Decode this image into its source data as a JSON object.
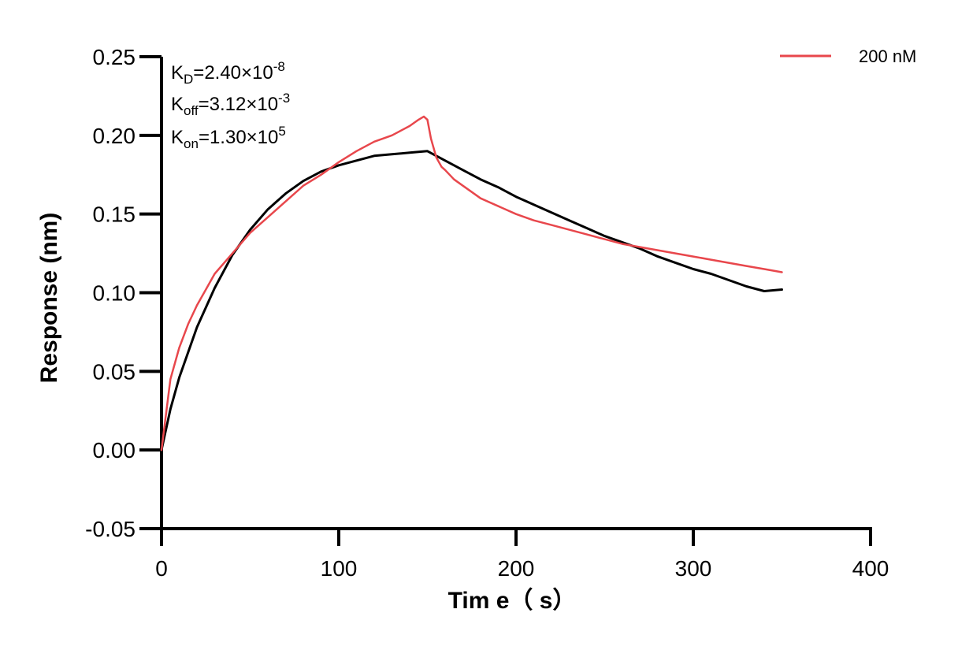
{
  "chart_data": {
    "type": "line",
    "xlabel": "Tim e（ s）",
    "ylabel": "Response (nm)",
    "xlim": [
      0,
      400
    ],
    "ylim": [
      -0.05,
      0.25
    ],
    "xticks": [
      "0",
      "100",
      "200",
      "300",
      "400"
    ],
    "yticks": [
      "-0.05",
      "0.00",
      "0.05",
      "0.10",
      "0.15",
      "0.20",
      "0.25"
    ],
    "grid": false,
    "legend_position": "top-right",
    "annotations": {
      "kd": {
        "base": "K",
        "sub": "D",
        "mid": "=2.40×10",
        "sup": "-8"
      },
      "koff": {
        "base": "K",
        "sub": "off",
        "mid": "=3.12×10",
        "sup": "-3"
      },
      "kon": {
        "base": "K",
        "sub": "on",
        "mid": "=1.30×10",
        "sup": "5"
      }
    },
    "series": [
      {
        "name": "200 nM",
        "color": "#e8474c",
        "x": [
          0,
          5,
          10,
          15,
          20,
          25,
          30,
          40,
          50,
          60,
          70,
          80,
          90,
          100,
          110,
          120,
          125,
          130,
          135,
          140,
          145,
          148,
          150,
          152,
          155,
          158,
          160,
          165,
          170,
          175,
          180,
          190,
          200,
          210,
          220,
          230,
          240,
          250,
          260,
          270,
          280,
          290,
          300,
          310,
          320,
          330,
          340,
          345,
          350
        ],
        "y": [
          0.0,
          0.045,
          0.065,
          0.08,
          0.092,
          0.102,
          0.112,
          0.125,
          0.138,
          0.148,
          0.158,
          0.168,
          0.175,
          0.183,
          0.19,
          0.196,
          0.198,
          0.2,
          0.203,
          0.206,
          0.21,
          0.212,
          0.21,
          0.198,
          0.186,
          0.18,
          0.178,
          0.172,
          0.168,
          0.164,
          0.16,
          0.155,
          0.15,
          0.146,
          0.143,
          0.14,
          0.137,
          0.134,
          0.131,
          0.129,
          0.127,
          0.125,
          0.123,
          0.121,
          0.119,
          0.117,
          0.115,
          0.114,
          0.113
        ]
      },
      {
        "name": "",
        "color": "#000000",
        "x": [
          0,
          5,
          10,
          20,
          30,
          40,
          50,
          60,
          70,
          80,
          90,
          100,
          110,
          120,
          130,
          140,
          150,
          160,
          170,
          180,
          190,
          200,
          210,
          220,
          230,
          240,
          250,
          260,
          270,
          280,
          290,
          300,
          310,
          320,
          330,
          340,
          350
        ],
        "y": [
          0.0,
          0.026,
          0.046,
          0.078,
          0.103,
          0.124,
          0.14,
          0.153,
          0.163,
          0.171,
          0.177,
          0.181,
          0.184,
          0.187,
          0.188,
          0.189,
          0.19,
          0.184,
          0.178,
          0.172,
          0.167,
          0.161,
          0.156,
          0.151,
          0.146,
          0.141,
          0.136,
          0.132,
          0.128,
          0.123,
          0.119,
          0.115,
          0.112,
          0.108,
          0.104,
          0.101,
          0.102
        ]
      }
    ]
  }
}
